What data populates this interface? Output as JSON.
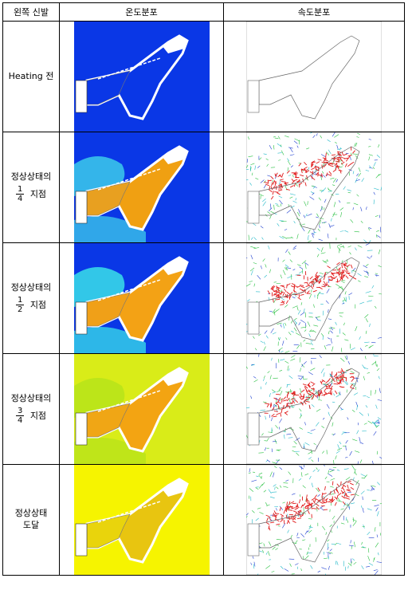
{
  "headers": {
    "col1": "왼쪽 신발",
    "col2": "온도분포",
    "col3": "속도분포"
  },
  "rows": [
    {
      "label_text": "Heating 전",
      "label_prefix": "",
      "frac_num": "",
      "frac_den": "",
      "label_suffix": "",
      "temp_bg": "#0a37e6",
      "temp_shoe": "#0a37e6",
      "temp_sole": "#0a37e6",
      "temp_left": "#0a37e6"
    },
    {
      "label_text": "",
      "label_prefix": "정상상태의",
      "frac_num": "1",
      "frac_den": "4",
      "label_suffix": "지점",
      "temp_bg": "#0a37e6",
      "temp_shoe": "#f0a012",
      "temp_sole": "#e8a020",
      "temp_left": "#39c3ea"
    },
    {
      "label_text": "",
      "label_prefix": "정상상태의",
      "frac_num": "1",
      "frac_den": "2",
      "label_suffix": "지점",
      "temp_bg": "#0a37e6",
      "temp_shoe": "#f3a215",
      "temp_sole": "#f0a018",
      "temp_left": "#36d7e8"
    },
    {
      "label_text": "",
      "label_prefix": "정상상태의",
      "frac_num": "3",
      "frac_den": "4",
      "label_suffix": "지점",
      "temp_bg": "#d9ec18",
      "temp_shoe": "#f3a412",
      "temp_sole": "#f0a615",
      "temp_left": "#b8e41a"
    },
    {
      "label_text": "정상상태\n도달",
      "label_prefix": "",
      "frac_num": "",
      "frac_den": "",
      "label_suffix": "",
      "temp_bg": "#f6f400",
      "temp_shoe": "#e8c510",
      "temp_sole": "#e9d40c",
      "temp_left": "#f6f400"
    }
  ],
  "colors": {
    "shoe_outline": "#ffffff",
    "flow_red": "#e01a1a",
    "flow_green": "#28c040",
    "flow_blue": "#2040d0",
    "flow_cyan": "#20b8c8"
  }
}
